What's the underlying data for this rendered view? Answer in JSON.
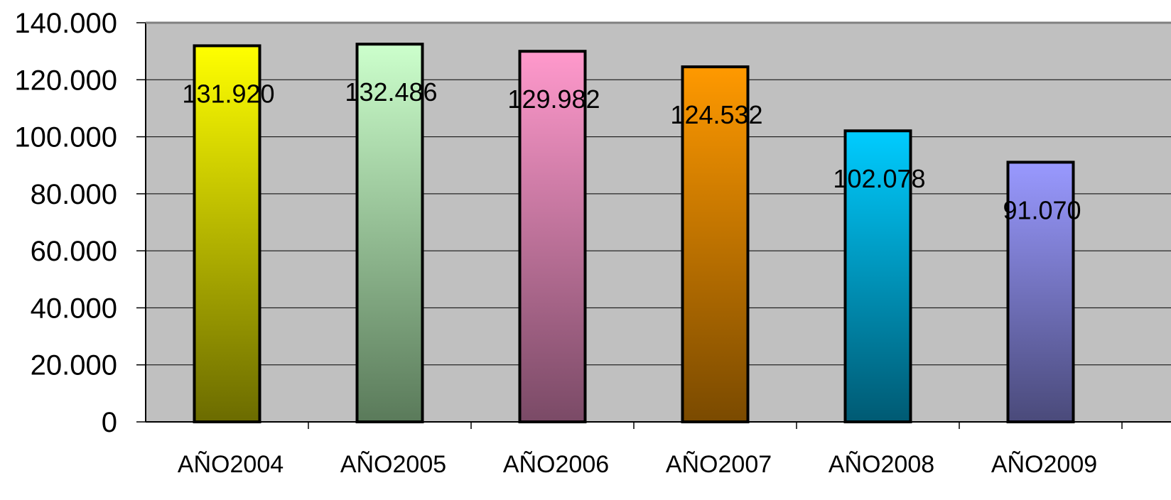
{
  "chart_data": {
    "type": "bar",
    "categories": [
      "AÑO2004",
      "AÑO2005",
      "AÑO2006",
      "AÑO2007",
      "AÑO2008",
      "AÑO2009"
    ],
    "values": [
      131920,
      132486,
      129982,
      124532,
      102078,
      91070
    ],
    "value_labels": [
      "131.920",
      "132.486",
      "129.982",
      "124.532",
      "102.078",
      "91.070"
    ],
    "ylim": [
      0,
      140000
    ],
    "yticks": [
      0,
      20000,
      40000,
      60000,
      80000,
      100000,
      120000,
      140000
    ],
    "ytick_labels": [
      "0",
      "20.000",
      "40.000",
      "60.000",
      "80.000",
      "100.000",
      "120.000",
      "140.000"
    ],
    "title": "",
    "xlabel": "",
    "ylabel": "",
    "grid": true,
    "legend": "none",
    "plot_background": "#c0c0c0",
    "bar_colors": [
      [
        "#ffff00",
        "#6b6b00"
      ],
      [
        "#ccffcc",
        "#5a7a5a"
      ],
      [
        "#ff99cc",
        "#7a4a66"
      ],
      [
        "#ff9900",
        "#7a4a00"
      ],
      [
        "#00ccff",
        "#005a73"
      ],
      [
        "#9999ff",
        "#4a4a7a"
      ]
    ]
  }
}
